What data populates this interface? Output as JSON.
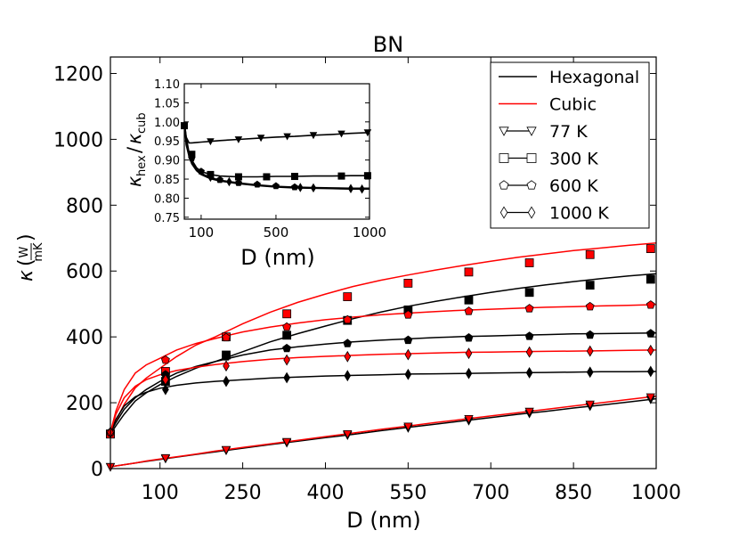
{
  "chart_data": [
    {
      "type": "line",
      "title": "BN",
      "xlabel": "D (nm)",
      "ylabel": "κ(W/mK)",
      "ylabel_parts": {
        "kappa": "κ",
        "num": "W",
        "den": "mK"
      },
      "xlim": [
        10,
        1000
      ],
      "ylim": [
        0,
        1250
      ],
      "xticks": [
        100,
        250,
        400,
        550,
        700,
        850,
        1000
      ],
      "xtick_labels": [
        "100",
        "250",
        "400",
        "550",
        "700",
        "850",
        "1000"
      ],
      "yticks": [
        0,
        200,
        400,
        600,
        800,
        1000,
        1200
      ],
      "ytick_labels": [
        "0",
        "200",
        "400",
        "600",
        "800",
        "1000",
        "1200"
      ],
      "legend": {
        "position": "top-right",
        "entries": [
          {
            "label": "Hexagonal",
            "kind": "line",
            "color": "#000000"
          },
          {
            "label": "Cubic",
            "kind": "line",
            "color": "#ff0000"
          },
          {
            "label": "77 K",
            "kind": "marker",
            "marker": "triangle-down"
          },
          {
            "label": "300 K",
            "kind": "marker",
            "marker": "square"
          },
          {
            "label": "600 K",
            "kind": "marker",
            "marker": "pentagon"
          },
          {
            "label": "1000 K",
            "kind": "marker",
            "marker": "diamond"
          }
        ]
      },
      "colors": {
        "hexagonal": "#000000",
        "cubic": "#ff0000"
      },
      "curve_x": [
        10,
        20,
        35,
        55,
        75,
        100,
        130,
        165,
        200,
        250,
        300,
        350,
        400,
        450,
        500,
        550,
        600,
        650,
        700,
        750,
        800,
        850,
        900,
        950,
        1000
      ],
      "marker_x": [
        10,
        110,
        220,
        330,
        440,
        550,
        660,
        770,
        880,
        990
      ],
      "series": [
        {
          "name": "Hexagonal 77 K",
          "material": "Hexagonal",
          "temperature": "77 K",
          "marker": "triangle-down",
          "curve": [
            5,
            8,
            12,
            17,
            22,
            28,
            35,
            43,
            51,
            62,
            73,
            83,
            94,
            104,
            115,
            125,
            135,
            145,
            155,
            165,
            174,
            184,
            193,
            202,
            212
          ],
          "markers": [
            5,
            30,
            55,
            78,
            101,
            123,
            145,
            167,
            189,
            210
          ]
        },
        {
          "name": "Cubic 77 K",
          "material": "Cubic",
          "temperature": "77 K",
          "marker": "triangle-down",
          "curve": [
            5,
            8,
            12,
            17,
            23,
            29,
            36,
            44,
            53,
            64,
            75,
            86,
            97,
            108,
            119,
            129,
            140,
            150,
            160,
            170,
            180,
            190,
            200,
            210,
            220
          ],
          "markers": [
            5,
            32,
            57,
            81,
            105,
            128,
            151,
            173,
            195,
            217
          ]
        },
        {
          "name": "Hexagonal 300 K",
          "material": "Hexagonal",
          "temperature": "300 K",
          "marker": "square",
          "curve": [
            105,
            130,
            165,
            205,
            230,
            255,
            280,
            305,
            325,
            355,
            385,
            410,
            433,
            455,
            475,
            493,
            508,
            522,
            535,
            547,
            558,
            568,
            577,
            585,
            592
          ],
          "markers": [
            105,
            265,
            345,
            405,
            450,
            482,
            512,
            535,
            557,
            575
          ]
        },
        {
          "name": "Cubic 300 K",
          "material": "Cubic",
          "temperature": "300 K",
          "marker": "square",
          "curve": [
            105,
            145,
            195,
            245,
            275,
            305,
            340,
            375,
            400,
            440,
            475,
            505,
            530,
            553,
            572,
            588,
            603,
            617,
            630,
            642,
            652,
            662,
            670,
            678,
            685
          ],
          "markers": [
            105,
            295,
            400,
            470,
            522,
            563,
            597,
            625,
            650,
            668
          ]
        },
        {
          "name": "Hexagonal 600 K",
          "material": "Hexagonal",
          "temperature": "600 K",
          "marker": "pentagon",
          "curve": [
            110,
            140,
            180,
            215,
            240,
            265,
            290,
            310,
            325,
            345,
            360,
            370,
            378,
            385,
            390,
            394,
            398,
            401,
            403,
            405,
            407,
            409,
            410,
            411,
            412
          ],
          "markers": [
            110,
            285,
            340,
            365,
            380,
            390,
            397,
            402,
            406,
            410
          ]
        },
        {
          "name": "Cubic 600 K",
          "material": "Cubic",
          "temperature": "600 K",
          "marker": "pentagon",
          "curve": [
            110,
            175,
            240,
            290,
            315,
            335,
            360,
            380,
            395,
            415,
            430,
            442,
            452,
            460,
            467,
            472,
            477,
            481,
            484,
            487,
            490,
            492,
            494,
            496,
            498
          ],
          "markers": [
            110,
            330,
            398,
            430,
            452,
            467,
            478,
            486,
            492,
            497
          ]
        },
        {
          "name": "Hexagonal 1000 K",
          "material": "Hexagonal",
          "temperature": "1000 K",
          "marker": "diamond",
          "curve": [
            110,
            150,
            190,
            218,
            232,
            244,
            253,
            260,
            265,
            270,
            275,
            278,
            281,
            283,
            285,
            287,
            288,
            289,
            290,
            291,
            292,
            293,
            294,
            294,
            295
          ],
          "markers": [
            110,
            240,
            265,
            276,
            282,
            286,
            289,
            291,
            293,
            295
          ]
        },
        {
          "name": "Cubic 1000 K",
          "material": "Cubic",
          "temperature": "1000 K",
          "marker": "diamond",
          "curve": [
            110,
            165,
            215,
            250,
            270,
            285,
            298,
            308,
            316,
            325,
            332,
            337,
            341,
            344,
            347,
            349,
            351,
            353,
            354,
            355,
            356,
            357,
            358,
            359,
            360
          ],
          "markers": [
            110,
            270,
            312,
            330,
            340,
            346,
            350,
            354,
            357,
            359
          ]
        }
      ]
    },
    {
      "type": "line",
      "title": "",
      "xlabel": "D (nm)",
      "ylabel": "κhex/κcub",
      "ylabel_parts": {
        "kappa": "κ",
        "sub1": "hex",
        "sub2": "cub"
      },
      "xlim": [
        10,
        1000
      ],
      "ylim": [
        0.745,
        1.1
      ],
      "xticks": [
        100,
        500,
        1000
      ],
      "xtick_labels": [
        "100",
        "500",
        "1000"
      ],
      "yticks": [
        0.75,
        0.8,
        0.85,
        0.9,
        0.95,
        1.0,
        1.05,
        1.1
      ],
      "ytick_labels": [
        "0.75",
        "0.80",
        "0.85",
        "0.90",
        "0.95",
        "1.00",
        "1.05",
        "1.10"
      ],
      "curve_x": [
        10,
        20,
        35,
        50,
        75,
        100,
        150,
        200,
        300,
        400,
        500,
        600,
        700,
        800,
        900,
        1000
      ],
      "series": [
        {
          "name": "77 K",
          "marker": "triangle-down",
          "curve": [
            1.0,
            0.96,
            0.945,
            0.945,
            0.946,
            0.947,
            0.949,
            0.951,
            0.954,
            0.957,
            0.96,
            0.962,
            0.965,
            0.967,
            0.97,
            0.972
          ],
          "marker_x": [
            10,
            150,
            300,
            420,
            560,
            700,
            850,
            990
          ],
          "markers": [
            0.99,
            0.949,
            0.954,
            0.958,
            0.962,
            0.965,
            0.969,
            0.972
          ]
        },
        {
          "name": "300 K",
          "marker": "square",
          "curve": [
            1.0,
            0.96,
            0.92,
            0.9,
            0.88,
            0.87,
            0.862,
            0.858,
            0.856,
            0.856,
            0.857,
            0.857,
            0.858,
            0.858,
            0.859,
            0.859
          ],
          "marker_x": [
            10,
            50,
            150,
            300,
            450,
            600,
            850,
            990
          ],
          "markers": [
            0.99,
            0.915,
            0.862,
            0.856,
            0.856,
            0.857,
            0.858,
            0.859
          ]
        },
        {
          "name": "600 K",
          "marker": "pentagon",
          "curve": [
            1.0,
            0.95,
            0.915,
            0.895,
            0.875,
            0.865,
            0.854,
            0.847,
            0.84,
            0.835,
            0.831,
            0.829,
            0.828,
            0.827,
            0.826,
            0.826
          ],
          "marker_x": [
            10,
            50,
            100,
            200,
            300,
            400,
            500,
            600
          ],
          "markers": [
            0.99,
            0.905,
            0.87,
            0.848,
            0.84,
            0.836,
            0.832,
            0.829
          ]
        },
        {
          "name": "1000 K",
          "marker": "diamond",
          "curve": [
            1.0,
            0.94,
            0.91,
            0.89,
            0.872,
            0.862,
            0.851,
            0.845,
            0.838,
            0.833,
            0.829,
            0.827,
            0.826,
            0.825,
            0.824,
            0.824
          ],
          "marker_x": [
            150,
            250,
            630,
            700,
            900,
            960
          ],
          "markers": [
            0.855,
            0.843,
            0.828,
            0.827,
            0.825,
            0.824
          ]
        }
      ]
    }
  ]
}
